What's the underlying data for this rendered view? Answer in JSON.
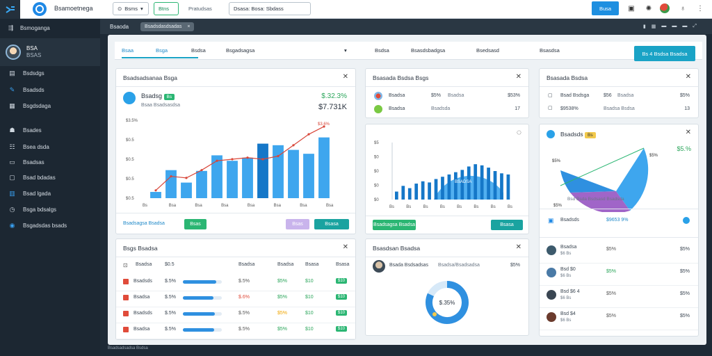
{
  "topbar": {
    "title": "Bsamoetnega",
    "pill_1": "Bsms",
    "pill_2": "Btns",
    "plain": "Pratudsas",
    "pill_3": "Dsasa: Bosa: Sbdass",
    "button": "Busa"
  },
  "sidebar": {
    "header": "Bsmoganga",
    "user": "BSA",
    "user_sub": "BSAS",
    "items": [
      {
        "label": "Bsdsdgs",
        "icon": "folder-icon"
      },
      {
        "label": "Bsadsds",
        "icon": "pen-icon"
      },
      {
        "label": "Bsgdsdaga",
        "icon": "dashboard-icon"
      },
      {
        "label": "Bsades",
        "icon": "people-icon"
      },
      {
        "label": "Bsea dsda",
        "icon": "grid-icon"
      },
      {
        "label": "Bsadsas",
        "icon": "doc-icon"
      },
      {
        "label": "Bsad bdadas",
        "icon": "mail-icon"
      },
      {
        "label": "Bsad lgada",
        "icon": "chart-icon"
      },
      {
        "label": "Bsga bdsalgs",
        "icon": "clock-icon"
      },
      {
        "label": "Bsgadsdas bsads",
        "icon": "globe-icon"
      }
    ]
  },
  "subheader": {
    "title": "Bsaoda",
    "chip": "Bsadsdasdsadas"
  },
  "tabs": {
    "items": [
      "Bsaa",
      "Bsga",
      "Bsdsa",
      "Bsgadsagsa",
      "Bsdsa",
      "Bsasdsbadgsa",
      "Bsedsasd",
      "Bsasdsa"
    ],
    "action": "Bs 4 Bsdsa Bsadsa"
  },
  "card1": {
    "title": "Bsadsadsanaa Bsga",
    "name": "Bsadsg",
    "badge": "Bs",
    "sub": "Bsaa Bsadsasdsa",
    "pct": "$.32.3%",
    "value": "$7.731K",
    "footer_link": "Bsadsagsa Bsadsa",
    "btn_1": "Bsas",
    "btn_2": "Bsasa"
  },
  "chart_data": [
    {
      "type": "bar",
      "categories": [
        "Bs",
        "Bs",
        "Bs",
        "Bs",
        "Bs",
        "Bs",
        "Bs",
        "Bs",
        "Bs",
        "Bs",
        "Bs",
        "Bs"
      ],
      "y_ticks": [
        "$3.5%",
        "$0.5",
        "$0.5",
        "$0.5",
        "$0.5"
      ],
      "x_ticks": [
        "Bs",
        "Bsa",
        "Bsa",
        "Bsa",
        "Bsa",
        "Bsa",
        "Bsa",
        "Bsa"
      ],
      "series": [
        {
          "type": "bar",
          "values": [
            8,
            36,
            20,
            35,
            55,
            48,
            52,
            70,
            68,
            62,
            57,
            78
          ]
        },
        {
          "type": "line",
          "values": [
            10,
            28,
            26,
            36,
            48,
            50,
            52,
            50,
            54,
            68,
            82,
            92
          ]
        }
      ],
      "line_label": "$3.6%",
      "ylim": [
        0,
        100
      ]
    },
    {
      "type": "bar",
      "categories": [
        "Bs",
        "Bs",
        "Bs",
        "Bs",
        "Bs",
        "Bs",
        "Bs",
        "Bs",
        "Bs",
        "Bs",
        "Bs",
        "Bs",
        "Bs",
        "Bs",
        "Bs",
        "Bs",
        "Bs",
        "Bs"
      ],
      "y_ticks": [
        "$5",
        "$0",
        "$0",
        "$0",
        "$0"
      ],
      "x_ticks": [
        "Bs",
        "Bs",
        "Bs",
        "Bs",
        "Bs",
        "Bs",
        "Bs",
        "Bs"
      ],
      "series": [
        {
          "type": "bar",
          "values": [
            14,
            24,
            20,
            28,
            32,
            30,
            36,
            40,
            44,
            48,
            52,
            58,
            62,
            60,
            56,
            50,
            46,
            44
          ]
        }
      ],
      "ylim": [
        0,
        100
      ]
    }
  ],
  "card2": {
    "title": "Bsasada Bsdsa Bsgs",
    "r1_name": "Bsadsa",
    "r1_pct": "$5% ",
    "r1_mid": "Bsadsa",
    "r1_val": "$53%",
    "r2_name": "Bsadsa",
    "r2_mid": "Bsadsda",
    "r2_val": "17",
    "overlay": "BSADSA"
  },
  "card3": {
    "title": "Bsasada Bsdsa",
    "r1_name": "Bsad Bsdsga",
    "r1_pct": "$56",
    "r1_mid": "Bsadsa",
    "r1_val": "$5%",
    "r2_name": "$9538%",
    "r2_mid": "Bsadsa Bsdsa",
    "r2_val": "13"
  },
  "card4": {
    "title": "Bsadsds",
    "badge": "Bs",
    "pct": "$5.%",
    "pie_label_1": "$5%",
    "pie_label_2": "$5%",
    "pie_label_3": "$5%",
    "legend": "Bsd Bsda Bsdsasd Bsadsda",
    "list_title": "Bsadsds",
    "list_value": "$9653 9%",
    "rows": [
      {
        "name": "Bsadsa",
        "sub": "$6 Bs",
        "pct": "$5%",
        "val": "$5%"
      },
      {
        "name": "Bsd $0",
        "sub": "$6 Bs",
        "pct": "$5%",
        "val": "$5%"
      },
      {
        "name": "Bsd $6 4",
        "sub": "$6 Bs",
        "pct": "$5%",
        "val": "$5%"
      },
      {
        "name": "Bsd $4",
        "sub": "$6 Bs",
        "pct": "$5%",
        "val": "$5%"
      }
    ]
  },
  "card5": {
    "title": "Bsgs Bsadsa",
    "headers": [
      "Bsadsa",
      "$0.5",
      "Bsadsa",
      "Bsadsa",
      "Bsasa",
      "Bsasa"
    ],
    "rows": [
      {
        "name": "Bsadsds",
        "val": "$.5%",
        "progress": 0.85,
        "c3": "$.5%",
        "c4": "$5%",
        "c5": "$10",
        "badge": "$10"
      },
      {
        "name": "Bsadsa",
        "val": "$.5%",
        "progress": 0.78,
        "c3": "$.6%",
        "c4": "$5%",
        "c5": "$10",
        "badge": "$10"
      },
      {
        "name": "Bsadsds",
        "val": "$.5%",
        "progress": 0.82,
        "c3": "$.5%",
        "c4": "$5%",
        "c5": "$10",
        "badge": "$10"
      },
      {
        "name": "Bsadsa",
        "val": "$.5%",
        "progress": 0.8,
        "c3": "$.5%",
        "c4": "$5%",
        "c5": "$10",
        "badge": "$10"
      }
    ]
  },
  "card6": {
    "title": "Bsasdsan Bsadsa",
    "row_name": "Bsada Bsdsadsas",
    "row_mid": "Bsadsa/Bsadsadsa",
    "row_val": "$5%",
    "donut_label": "$.35%",
    "donut_fraction": 0.82
  },
  "footer": "Bsadsadsadsa Bsdsa",
  "colors": {
    "accent": "#1e88e5",
    "teal": "#1aa3c6",
    "green": "#2bb673",
    "red": "#e04b3a",
    "bar": "#3ea6ee",
    "bar_dark": "#1577c8"
  }
}
